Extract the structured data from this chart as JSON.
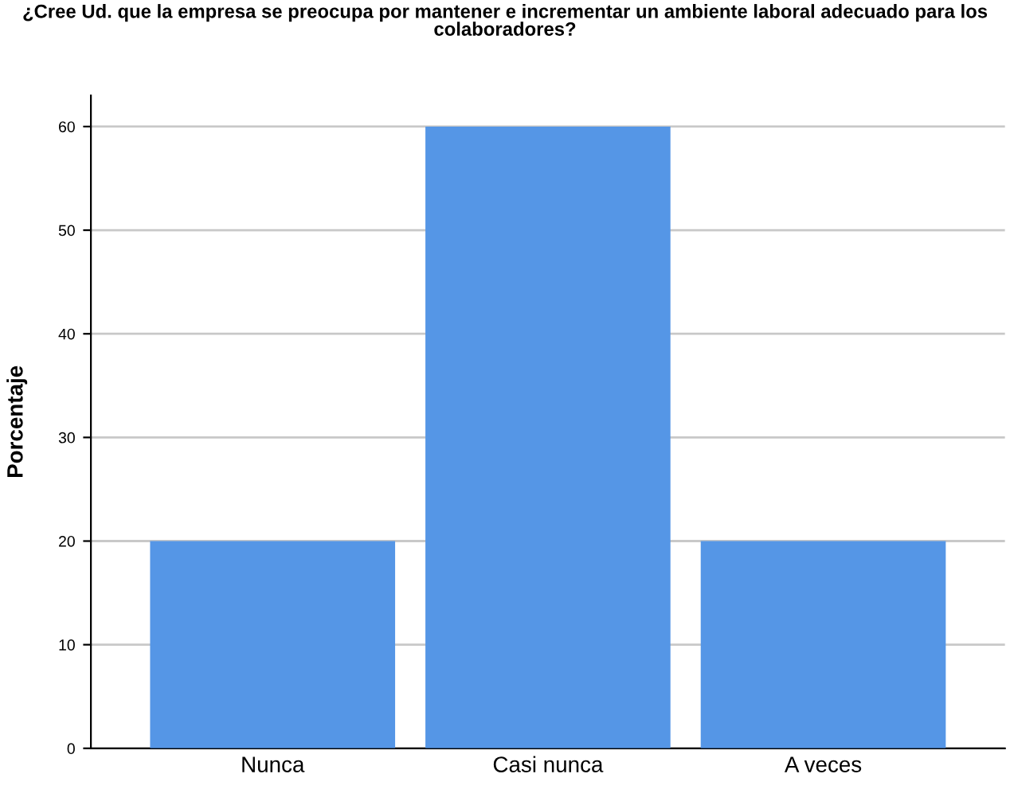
{
  "chart_data": {
    "type": "bar",
    "title": "¿Cree Ud. que la empresa se preocupa por mantener e incrementar un ambiente laboral adecuado para los\ncolaboradores?",
    "ylabel": "Porcentaje",
    "categories": [
      "Nunca",
      "Casi nunca",
      "A veces"
    ],
    "values": [
      20,
      60,
      20
    ],
    "color": "#5596e6",
    "ylim": [
      0,
      63
    ],
    "yticks": [
      0,
      10,
      20,
      30,
      40,
      50,
      60
    ],
    "grid": "y"
  }
}
